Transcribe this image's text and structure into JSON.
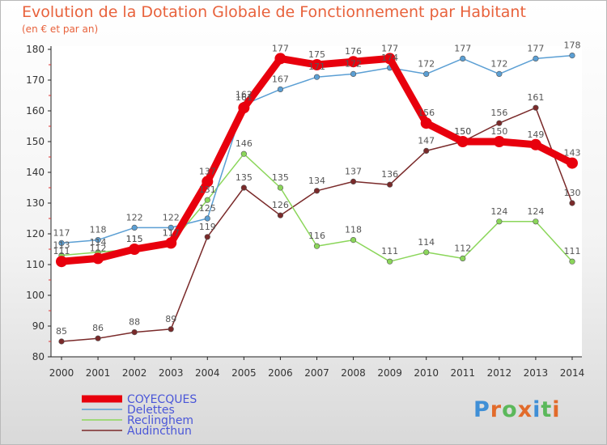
{
  "title": "Evolution de la Dotation Globale de Fonctionnement par Habitant",
  "subtitle": "(en € et par an)",
  "logo": "Proxiti",
  "chart_data": {
    "type": "line",
    "title": "Evolution de la Dotation Globale de Fonctionnement par Habitant",
    "subtitle": "(en € et par an)",
    "xlabel": "",
    "ylabel": "",
    "x": [
      "2000",
      "2001",
      "2002",
      "2003",
      "2004",
      "2005",
      "2006",
      "2007",
      "2008",
      "2009",
      "2010",
      "2011",
      "2012",
      "2013",
      "2014"
    ],
    "ylim": [
      80,
      180
    ],
    "yticks": [
      80,
      90,
      100,
      110,
      120,
      130,
      140,
      150,
      160,
      170,
      180
    ],
    "grid": false,
    "legend": "bottom-left",
    "series": [
      {
        "name": "Audincthun",
        "color": "#7a2a2a",
        "values": [
          85,
          86,
          88,
          89,
          119,
          135,
          126,
          134,
          137,
          136,
          147,
          150,
          156,
          161,
          130
        ]
      },
      {
        "name": "Reclinghem",
        "color": "#8bd65a",
        "values": [
          113,
          114,
          115,
          117,
          131,
          146,
          135,
          116,
          118,
          111,
          114,
          112,
          124,
          124,
          111
        ]
      },
      {
        "name": "Delettes",
        "color": "#5b9fd4",
        "values": [
          117,
          118,
          122,
          122,
          125,
          162,
          167,
          171,
          172,
          174,
          172,
          177,
          172,
          177,
          178
        ]
      },
      {
        "name": "COYECQUES",
        "color": "#e8000d",
        "values": [
          111,
          112,
          115,
          117,
          137,
          161,
          177,
          175,
          176,
          177,
          156,
          150,
          150,
          149,
          143
        ]
      }
    ]
  }
}
